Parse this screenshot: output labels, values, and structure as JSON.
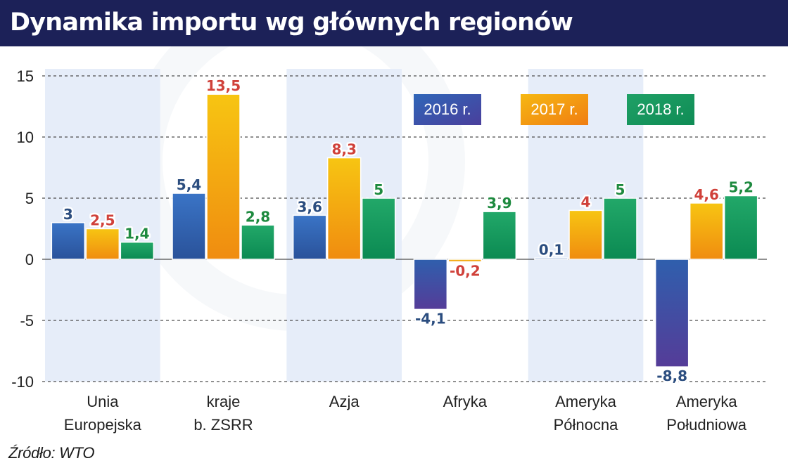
{
  "title": "Dynamika importu wg głównych regionów",
  "source": "Źródło: WTO",
  "colors": {
    "title_bg": "#1c2158",
    "band": "#e6edf9",
    "s2016": "#2f5fad",
    "s2016_neg": "#4a3f9c",
    "s2017": "#f39a0e",
    "s2018": "#129359",
    "label2016": "#2b4d7f",
    "label2017": "#d0413a",
    "label2018": "#1e8a3f"
  },
  "chart_data": {
    "type": "bar",
    "categories": [
      [
        "Unia",
        "Europejska"
      ],
      [
        "kraje",
        "b. ZSRR"
      ],
      [
        "Azja"
      ],
      [
        "Afryka"
      ],
      [
        "Ameryka",
        "Północna"
      ],
      [
        "Ameryka",
        "Południowa"
      ]
    ],
    "series": [
      {
        "name": "2016 r.",
        "values": [
          3,
          5.4,
          3.6,
          -4.1,
          0.1,
          -8.8
        ],
        "labels": [
          "3",
          "5,4",
          "3,6",
          "-4,1",
          "0,1",
          "-8,8"
        ]
      },
      {
        "name": "2017 r.",
        "values": [
          2.5,
          13.5,
          8.3,
          -0.2,
          4,
          4.6
        ],
        "labels": [
          "2,5",
          "13,5",
          "8,3",
          "-0,2",
          "4",
          "4,6"
        ]
      },
      {
        "name": "2018 r.",
        "values": [
          1.4,
          2.8,
          5,
          3.9,
          5,
          5.2
        ],
        "labels": [
          "1,4",
          "2,8",
          "5",
          "3,9",
          "5",
          "5,2"
        ]
      }
    ],
    "yticks": [
      "15",
      "10",
      "5",
      "0",
      "-5",
      "-10"
    ],
    "ylim": [
      -10,
      15
    ],
    "grid": true,
    "legend": "top-right",
    "xlabel": "",
    "ylabel": ""
  }
}
